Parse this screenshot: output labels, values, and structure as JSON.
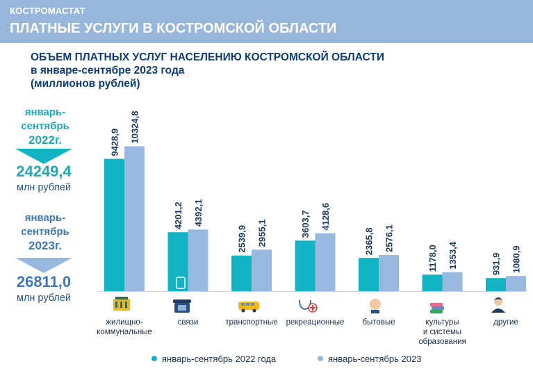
{
  "header": {
    "org": "КОСТРОМАСТАТ",
    "title": "ПЛАТНЫЕ УСЛУГИ В КОСТРОМСКОЙ ОБЛАСТИ"
  },
  "chart_title_lines": [
    "ОБЪЕМ ПЛАТНЫХ УСЛУГ НАСЕЛЕНИЮ КОСТРОМСКОЙ ОБЛАСТИ",
    "в январе-сентябре 2023 года",
    "(миллионов рублей)"
  ],
  "totals": [
    {
      "label_lines": [
        "январь-",
        "сентябрь",
        "2022г."
      ],
      "value": "24249,4",
      "unit": "млн рублей"
    },
    {
      "label_lines": [
        "январь-",
        "сентябрь",
        "2023г."
      ],
      "value": "26811,0",
      "unit": "млн рублей"
    }
  ],
  "colors": {
    "series_2022": "#12b4c3",
    "series_2023": "#98b9df",
    "text_2022": "#1fa8b8",
    "text_2023": "#3f78b7",
    "header": "#97b6d9",
    "title": "#0d3c75"
  },
  "chart_data": {
    "type": "bar",
    "title": "ОБЪЕМ ПЛАТНЫХ УСЛУГ НАСЕЛЕНИЮ КОСТРОМСКОЙ ОБЛАСТИ в январе-сентябре 2023 года (миллионов рублей)",
    "categories": [
      "жилищно-коммунальные",
      "связи",
      "транспортные",
      "рекреационные",
      "бытовые",
      "культуры и системы образования",
      "другие"
    ],
    "category_label_lines": [
      [
        "жилищно-",
        "коммунальные"
      ],
      [
        "связи"
      ],
      [
        "транспортные"
      ],
      [
        "рекреационные"
      ],
      [
        "бытовые"
      ],
      [
        "культуры",
        "и системы",
        "образования"
      ],
      [
        "другие"
      ]
    ],
    "category_icons": [
      "housing-icon",
      "telephone-icon",
      "bus-icon",
      "medical-icon",
      "hairdresser-icon",
      "books-icon",
      "person-icon"
    ],
    "series": [
      {
        "name": "январь-сентябрь 2022 года",
        "values": [
          9428.9,
          4201.2,
          2539.9,
          3603.7,
          2365.8,
          1178.0,
          931.9
        ],
        "labels": [
          "9428,9",
          "4201,2",
          "2539,9",
          "3603,7",
          "2365,8",
          "1178,0",
          "931,9"
        ]
      },
      {
        "name": "январь-сентябрь 2023",
        "values": [
          10324.8,
          4392.1,
          2955.1,
          4128.6,
          2576.1,
          1353.4,
          1080.9
        ],
        "labels": [
          "10324,8",
          "4392,1",
          "2955,1",
          "4128,6",
          "2576,1",
          "1353,4",
          "1080,9"
        ]
      }
    ],
    "ylim": [
      0,
      10400
    ],
    "legend_position": "bottom",
    "grid": false
  }
}
